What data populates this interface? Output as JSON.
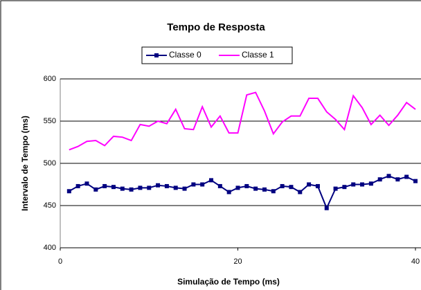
{
  "chart_data": {
    "type": "line",
    "title": "Tempo de Resposta",
    "x_label": "Simulação de Tempo (ms)",
    "y_label": "Intervalo de Tempo (ms)",
    "x": [
      1,
      2,
      3,
      4,
      5,
      6,
      7,
      8,
      9,
      10,
      11,
      12,
      13,
      14,
      15,
      16,
      17,
      18,
      19,
      20,
      21,
      22,
      23,
      24,
      25,
      26,
      27,
      28,
      29,
      30,
      31,
      32,
      33,
      34,
      35,
      36,
      37,
      38,
      39,
      40
    ],
    "series": [
      {
        "name": "Classe 0",
        "color": "#000080",
        "marker": "square",
        "values": [
          467,
          473,
          476,
          469,
          473,
          472,
          470,
          469,
          471,
          471,
          474,
          473,
          471,
          470,
          475,
          475,
          480,
          473,
          466,
          471,
          473,
          470,
          469,
          467,
          473,
          472,
          466,
          475,
          473,
          447,
          470,
          472,
          475,
          475,
          476,
          481,
          485,
          481,
          484,
          479
        ]
      },
      {
        "name": "Classe 1",
        "color": "#ff00ff",
        "values": [
          516,
          520,
          526,
          527,
          521,
          532,
          531,
          527,
          546,
          544,
          550,
          547,
          564,
          541,
          540,
          567,
          543,
          556,
          536,
          536,
          581,
          584,
          562,
          535,
          549,
          556,
          556,
          577,
          577,
          561,
          552,
          540,
          580,
          566,
          546,
          557,
          545,
          557,
          572,
          564
        ]
      }
    ],
    "xlim": [
      0,
      40
    ],
    "xticks": [
      0,
      20,
      40
    ],
    "ylim": [
      400,
      600
    ],
    "yticks": [
      400,
      450,
      500,
      550,
      600
    ],
    "grid": true
  }
}
